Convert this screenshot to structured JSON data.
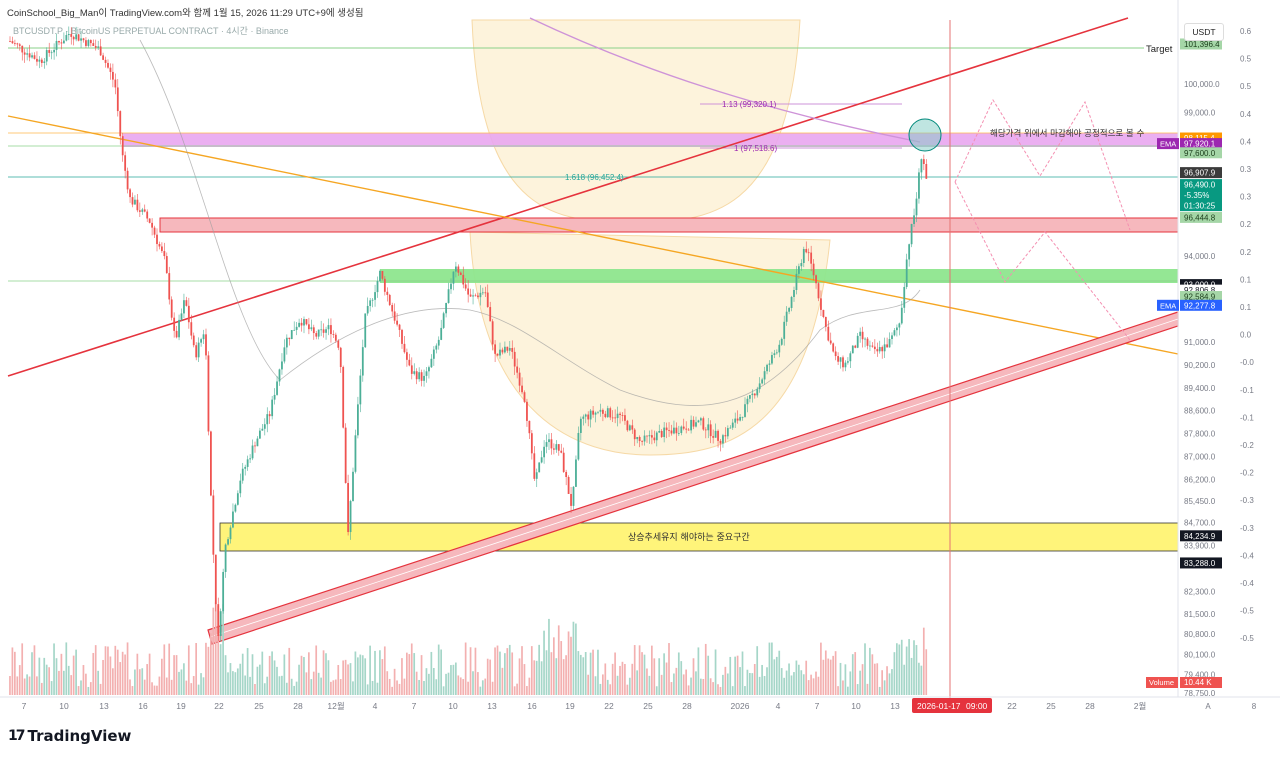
{
  "header": {
    "text": "CoinSchool_Big_Man이 TradingView.com와 함께 1월 15, 2026 11:29 UTC+9에 생성됨",
    "symbol": "BTCUSDT.P · BitcoinUS PERPETUAL CONTRACT · 4시간 · Binance"
  },
  "footer": {
    "logo_text": "TradingView",
    "logo_mark": "17"
  },
  "price_scale_currency": "USDT",
  "colors": {
    "trend_red": "#e5333d",
    "orange_line": "#f5a623",
    "green_zone": "#8ee68e",
    "red_zone": "#f6b8bd",
    "magenta_zone": "#e9a6f0",
    "yellow_zone": "#fff47a",
    "bull_candle": "#4caf97",
    "bear_candle": "#ef5350",
    "ema_blue": "#2962ff",
    "ema_purple": "#9c27b0",
    "cyan_price": "#089981"
  },
  "chart_data": {
    "type": "candlestick",
    "timeframe": "4h",
    "y_range": [
      78750,
      102500
    ],
    "x_tick_labels": [
      "7",
      "10",
      "13",
      "16",
      "19",
      "22",
      "25",
      "28",
      "12월",
      "4",
      "7",
      "10",
      "13",
      "16",
      "19",
      "22",
      "25",
      "28",
      "2026",
      "4",
      "7",
      "10",
      "13",
      "22",
      "25",
      "28",
      "2월"
    ],
    "time_scale_extra": [
      "A",
      "8"
    ],
    "price_ticks": [
      "100,000.0",
      "99,000.0",
      "94,000.0",
      "91,000.0",
      "90,200.0",
      "89,400.0",
      "88,600.0",
      "87,800.0",
      "87,000.0",
      "86,200.0",
      "85,450.0",
      "84,700.0",
      "83,900.0",
      "82,300.0",
      "81,500.0",
      "80,800.0",
      "80,100.0",
      "79,400.0",
      "78,750.0"
    ],
    "secondary_scale": [
      "0.6",
      "0.5",
      "0.5",
      "0.4",
      "0.4",
      "0.3",
      "0.3",
      "0.2",
      "0.2",
      "0.1",
      "0.1",
      "0.0",
      "-0.0",
      "-0.1",
      "-0.1",
      "-0.2",
      "-0.2",
      "-0.3",
      "-0.3",
      "-0.4",
      "-0.4",
      "-0.5",
      "-0.5"
    ],
    "price_labels": [
      {
        "text": "101,396.4",
        "price": 101396.4,
        "color": "#a5d6a7",
        "text_color": "#1b3d1b"
      },
      {
        "text": "98,115.4",
        "price": 98115.4,
        "color": "#ff9800",
        "text_color": "#ffffff"
      },
      {
        "text": "97,920.1",
        "price": 97920.1,
        "color": "#9c27b0",
        "text_color": "#ffffff",
        "tag": "EMA"
      },
      {
        "text": "97,600.0",
        "price": 97600.0,
        "color": "#a5d6a7",
        "text_color": "#1b3d1b"
      },
      {
        "text": "96,907.9",
        "price": 96907.9,
        "color": "#3b3b3b",
        "text_color": "#ffffff"
      },
      {
        "text": "96,490.0",
        "price": 96490.0,
        "color": "#089981",
        "text_color": "#ffffff"
      },
      {
        "text": "-5.35%",
        "price": 96490.0,
        "color": "#089981",
        "text_color": "#ffffff"
      },
      {
        "text": "01:30:25",
        "price": 96490.0,
        "color": "#089981",
        "text_color": "#ffffff"
      },
      {
        "text": "96,444.8",
        "price": 96444.8,
        "color": "#a5d6a7",
        "text_color": "#1b3d1b"
      },
      {
        "text": "93,000.0",
        "price": 93000.0,
        "color": "#131722",
        "text_color": "#ffffff"
      },
      {
        "text": "92,806.8",
        "price": 92806.8,
        "color": "#ffffff",
        "text_color": "#131722"
      },
      {
        "text": "92,584.9",
        "price": 92584.9,
        "color": "#a5d6a7",
        "text_color": "#1b3d1b"
      },
      {
        "text": "92,277.8",
        "price": 92277.8,
        "color": "#2962ff",
        "text_color": "#ffffff",
        "tag": "EMA"
      },
      {
        "text": "84,234.9",
        "price": 84234.9,
        "color": "#131722",
        "text_color": "#ffffff"
      },
      {
        "text": "83,288.0",
        "price": 83288.0,
        "color": "#131722",
        "text_color": "#ffffff"
      }
    ],
    "annotations": {
      "target_label": "Target",
      "fib_1_13": "1.13 (99,320.1)",
      "fib_1": "1 (97,518.6)",
      "fib_1_618": "1.618 (96,452.4)",
      "korean_note": "해당가격 위에서 마감해야 공정적으로 볼 수",
      "support_zone_label": "상승추세유지 해야하는 중요구간",
      "volume_label": "Volume",
      "volume_value": "10.44 K",
      "date_marker": "2026-01-17",
      "time_marker": "09:00"
    },
    "zones": [
      {
        "name": "magenta",
        "price_top": 98100,
        "price_bottom": 97600
      },
      {
        "name": "red",
        "price_top": 95150,
        "price_bottom": 94650
      },
      {
        "name": "green",
        "price_top": 93000,
        "price_bottom": 92584.9
      },
      {
        "name": "yellow",
        "price_top": 84234.9,
        "price_bottom": 83288.0
      }
    ]
  }
}
